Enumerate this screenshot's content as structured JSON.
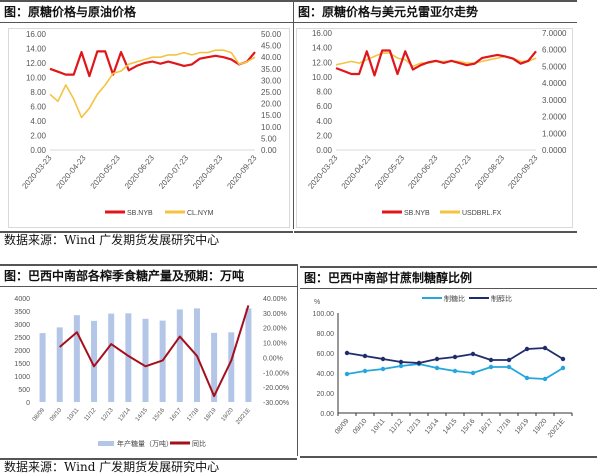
{
  "sources": [
    "数据来源：Wind 广发期货发展研究中心",
    "数据来源：Wind 广发期货发展研究中心"
  ],
  "chart_data": [
    {
      "type": "line",
      "title": "图：原糖价格与原油价格",
      "x_ticks": [
        "2020-03-23",
        "2020-04-23",
        "2020-05-23",
        "2020-06-23",
        "2020-07-23",
        "2020-08-23",
        "2020-09-23"
      ],
      "x": [
        "2020-03-23",
        "2020-03-30",
        "2020-04-06",
        "2020-04-13",
        "2020-04-20",
        "2020-04-27",
        "2020-05-04",
        "2020-05-11",
        "2020-05-18",
        "2020-05-25",
        "2020-06-01",
        "2020-06-08",
        "2020-06-15",
        "2020-06-22",
        "2020-06-29",
        "2020-07-06",
        "2020-07-13",
        "2020-07-20",
        "2020-07-27",
        "2020-08-03",
        "2020-08-10",
        "2020-08-17",
        "2020-08-24",
        "2020-08-31",
        "2020-09-07",
        "2020-09-14",
        "2020-09-21"
      ],
      "y_left": {
        "min": 0,
        "max": 16,
        "ticks": [
          "0.00",
          "2.00",
          "4.00",
          "6.00",
          "8.00",
          "10.00",
          "12.00",
          "14.00",
          "16.00"
        ]
      },
      "y_right": {
        "min": 0,
        "max": 50,
        "ticks": [
          "0.00",
          "5.00",
          "10.00",
          "15.00",
          "20.00",
          "25.00",
          "30.00",
          "35.00",
          "40.00",
          "45.00",
          "50.00"
        ]
      },
      "series": [
        {
          "name": "SB.NYB",
          "axis": "left",
          "color": "#e0161b",
          "values": [
            11.2,
            10.8,
            10.4,
            10.4,
            13.5,
            10.2,
            13.6,
            13.6,
            10.4,
            13.5,
            11.0,
            11.6,
            12.0,
            12.2,
            11.9,
            12.2,
            11.9,
            11.6,
            11.8,
            12.6,
            12.8,
            13.0,
            12.8,
            12.5,
            11.8,
            12.2,
            13.5
          ]
        },
        {
          "name": "CL.NYM",
          "axis": "right",
          "color": "#f5c342",
          "values": [
            24,
            21,
            28,
            22,
            14,
            18,
            24,
            28,
            33,
            34,
            37,
            38,
            39,
            40,
            40,
            41,
            41,
            42,
            41,
            42,
            42,
            43,
            43,
            42,
            37,
            38,
            40
          ]
        }
      ],
      "legend": "bottom",
      "grid": false
    },
    {
      "type": "line",
      "title": "图：原糖价格与美元兑雷亚尔走势",
      "x_ticks": [
        "2020-03-23",
        "2020-04-23",
        "2020-05-23",
        "2020-06-23",
        "2020-07-23",
        "2020-08-23",
        "2020-09-23"
      ],
      "x": [
        "2020-03-23",
        "2020-03-30",
        "2020-04-06",
        "2020-04-13",
        "2020-04-20",
        "2020-04-27",
        "2020-05-04",
        "2020-05-11",
        "2020-05-18",
        "2020-05-25",
        "2020-06-01",
        "2020-06-08",
        "2020-06-15",
        "2020-06-22",
        "2020-06-29",
        "2020-07-06",
        "2020-07-13",
        "2020-07-20",
        "2020-07-27",
        "2020-08-03",
        "2020-08-10",
        "2020-08-17",
        "2020-08-24",
        "2020-08-31",
        "2020-09-07",
        "2020-09-14",
        "2020-09-21"
      ],
      "y_left": {
        "min": 0,
        "max": 16,
        "ticks": [
          "0.00",
          "2.00",
          "4.00",
          "6.00",
          "8.00",
          "10.00",
          "12.00",
          "14.00",
          "16.00"
        ]
      },
      "y_right": {
        "min": 0,
        "max": 7,
        "ticks": [
          "0.0000",
          "1.0000",
          "2.0000",
          "3.0000",
          "4.0000",
          "5.0000",
          "6.0000",
          "7.0000"
        ]
      },
      "series": [
        {
          "name": "USDBRL.FX",
          "axis": "right",
          "color": "#f5c342",
          "values": [
            5.1,
            5.2,
            5.3,
            5.2,
            5.4,
            5.6,
            5.8,
            5.8,
            5.5,
            5.4,
            5.0,
            5.2,
            5.2,
            5.3,
            5.3,
            5.3,
            5.3,
            5.2,
            5.2,
            5.3,
            5.4,
            5.5,
            5.6,
            5.5,
            5.3,
            5.3,
            5.5
          ]
        },
        {
          "name": "SB.NYB",
          "axis": "left",
          "color": "#e0161b",
          "values": [
            11.2,
            10.8,
            10.4,
            10.4,
            13.5,
            10.2,
            13.6,
            13.6,
            10.4,
            13.5,
            11.0,
            11.6,
            12.0,
            12.2,
            11.9,
            12.2,
            11.9,
            11.6,
            11.8,
            12.6,
            12.8,
            13.0,
            12.8,
            12.5,
            11.8,
            12.2,
            13.5
          ]
        }
      ],
      "legend_order": [
        "SB.NYB",
        "USDBRL.FX"
      ],
      "legend": "bottom",
      "grid": false
    },
    {
      "type": "bar",
      "title": "图：巴西中南部各榨季食糖产量及预期：万吨",
      "categories": [
        "08/09",
        "09/10",
        "10/11",
        "11/12",
        "12/13",
        "13/14",
        "14/15",
        "15/16",
        "16/17",
        "17/18",
        "18/19",
        "19/20",
        "20/21E"
      ],
      "y_left": {
        "min": 0,
        "max": 4000,
        "ticks": [
          "0",
          "500",
          "1000",
          "1500",
          "2000",
          "2500",
          "3000",
          "3500",
          "4000"
        ]
      },
      "y_right": {
        "min": -30,
        "max": 40,
        "ticks": [
          "-30.00%",
          "-20.00%",
          "-10.00%",
          "0.00%",
          "10.00%",
          "20.00%",
          "30.00%",
          "40.00%"
        ]
      },
      "series": [
        {
          "name": "年产糖量（万吨）",
          "type": "bar",
          "axis": "left",
          "color": "#b4c6e7",
          "values": [
            2650,
            2870,
            3340,
            3120,
            3400,
            3410,
            3200,
            3130,
            3560,
            3600,
            2660,
            2680,
            3600
          ]
        },
        {
          "name": "同比",
          "type": "line",
          "axis": "right",
          "color": "#a50f1c",
          "values": [
            null,
            7,
            17,
            -6,
            9,
            1,
            -6,
            -2,
            14,
            1,
            -26,
            -2,
            35
          ]
        }
      ],
      "legend": "bottom",
      "grid": false
    },
    {
      "type": "line",
      "title": "图：巴西中南部甘蔗制糖醇比例",
      "categories": [
        "08/09",
        "09/10",
        "10/11",
        "11/12",
        "12/13",
        "13/14",
        "14/15",
        "15/16",
        "16/17",
        "17/18",
        "18/19",
        "19/20",
        "20/21E"
      ],
      "y_unit": "%",
      "y_left": {
        "min": 0,
        "max": 100,
        "ticks": [
          "0.00",
          "20.00",
          "40.00",
          "60.00",
          "80.00",
          "100.00"
        ]
      },
      "series": [
        {
          "name": "制糖比",
          "color": "#25a6dc",
          "values": [
            39,
            42,
            44,
            47,
            49,
            45,
            42,
            40,
            46,
            46,
            35,
            34,
            45
          ]
        },
        {
          "name": "制醇比",
          "color": "#1f2d6b",
          "values": [
            60,
            57,
            54,
            51,
            50,
            54,
            56,
            59,
            53,
            53,
            64,
            65,
            54
          ]
        }
      ],
      "legend": "top",
      "grid": false
    }
  ]
}
